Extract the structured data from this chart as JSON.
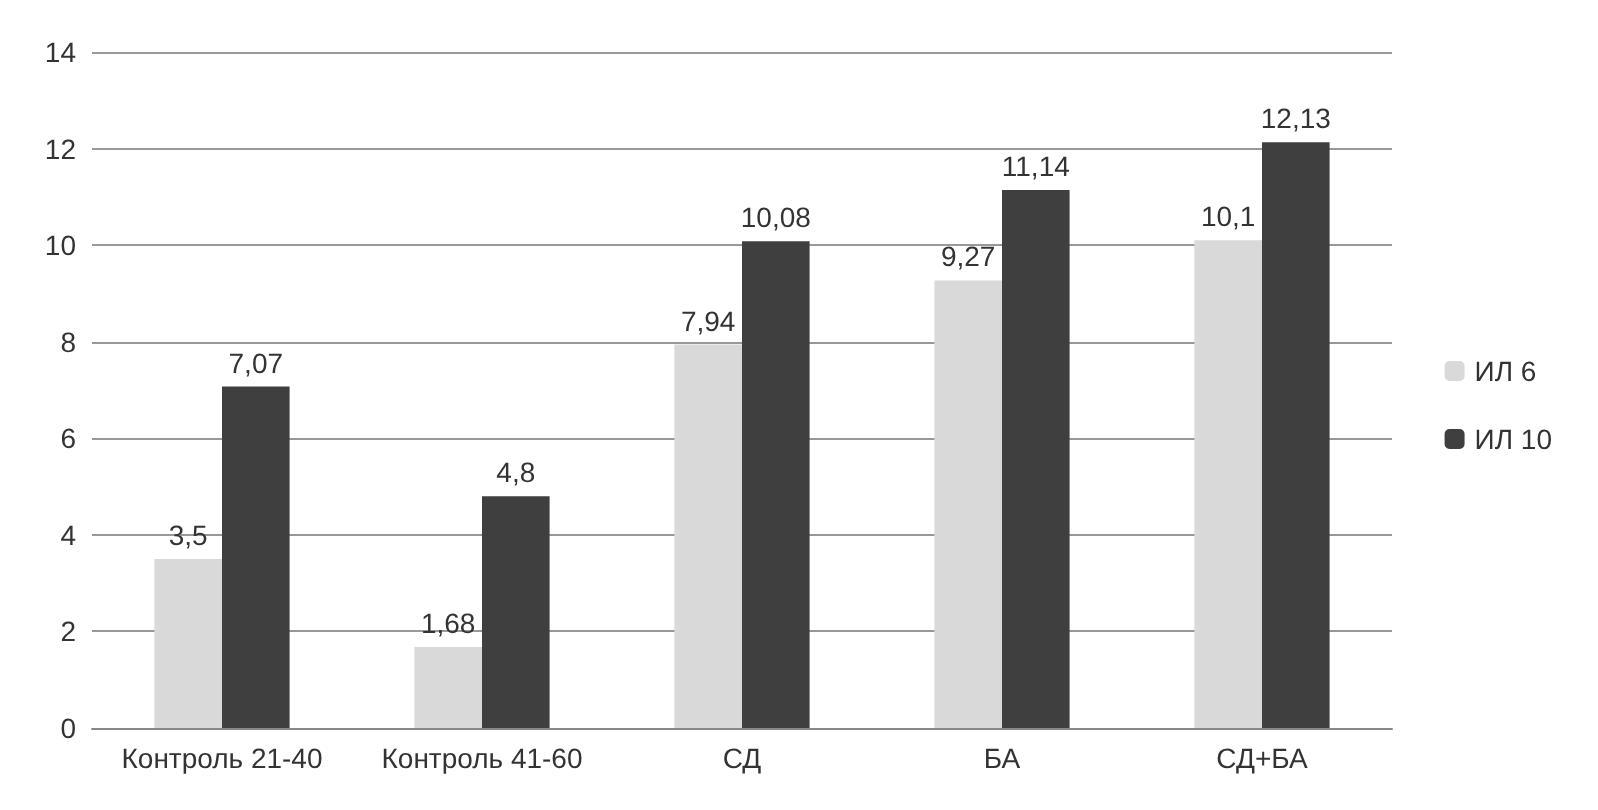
{
  "chart_data": {
    "type": "bar",
    "categories": [
      "Контроль 21-40",
      "Контроль 41-60",
      "СД",
      "БА",
      "СД+БА"
    ],
    "series": [
      {
        "name": "ИЛ 6",
        "color": "#d9d9d9",
        "values": [
          3.5,
          1.68,
          7.94,
          9.27,
          10.1
        ],
        "value_labels": [
          "3,5",
          "1,68",
          "7,94",
          "9,27",
          "10,1"
        ]
      },
      {
        "name": "ИЛ 10",
        "color": "#3f3f3f",
        "values": [
          7.07,
          4.8,
          10.08,
          11.14,
          12.13
        ],
        "value_labels": [
          "7,07",
          "4,8",
          "10,08",
          "11,14",
          "12,13"
        ]
      }
    ],
    "ylim": [
      0,
      14
    ],
    "yticks": [
      0,
      2,
      4,
      6,
      8,
      10,
      12,
      14
    ],
    "grid": "y",
    "legend": "right"
  }
}
